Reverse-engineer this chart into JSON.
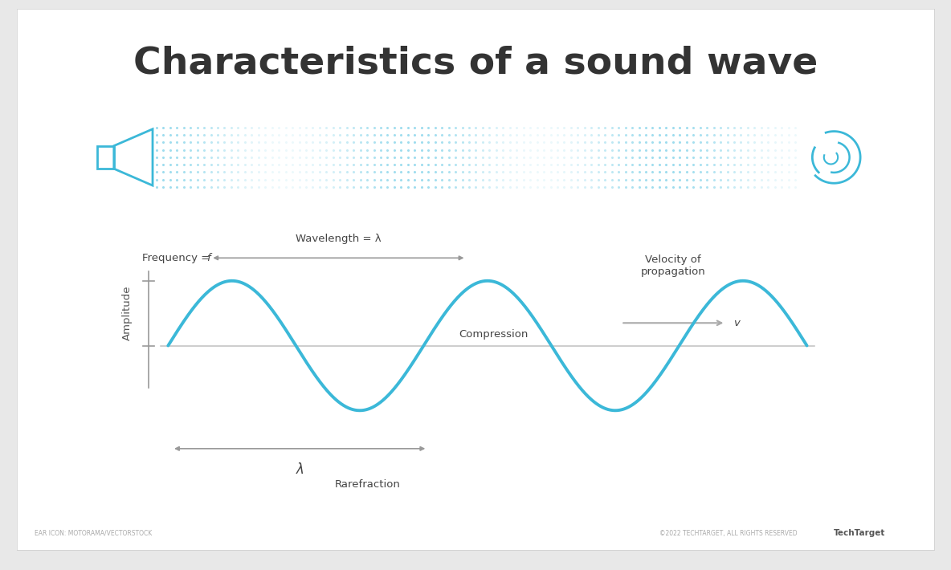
{
  "title": "Characteristics of a sound wave",
  "title_fontsize": 34,
  "title_fontweight": "bold",
  "title_color": "#333333",
  "bg_color": "#e8e8e8",
  "card_color": "#ffffff",
  "wave_color": "#3bb8d8",
  "wave_linewidth": 2.8,
  "axis_color": "#aaaaaa",
  "text_color": "#555555",
  "dark_text": "#444444",
  "dot_color": "#4dc0e0",
  "frequency_label": "Frequency = ",
  "frequency_italic": "f",
  "wavelength_label": "Wavelength = λ",
  "amplitude_label": "Amplitude",
  "lambda_label": "λ",
  "compression_label": "Compression",
  "rarefraction_label": "Rarefraction",
  "velocity_label": "Velocity of\npropagation",
  "velocity_symbol": "v",
  "footer_left": "EAR ICON: MOTORAMA/VECTORSTOCK",
  "footer_right": "©2022 TECHTARGET, ALL RIGHTS RESERVED",
  "footer_brand": "TechTarget"
}
